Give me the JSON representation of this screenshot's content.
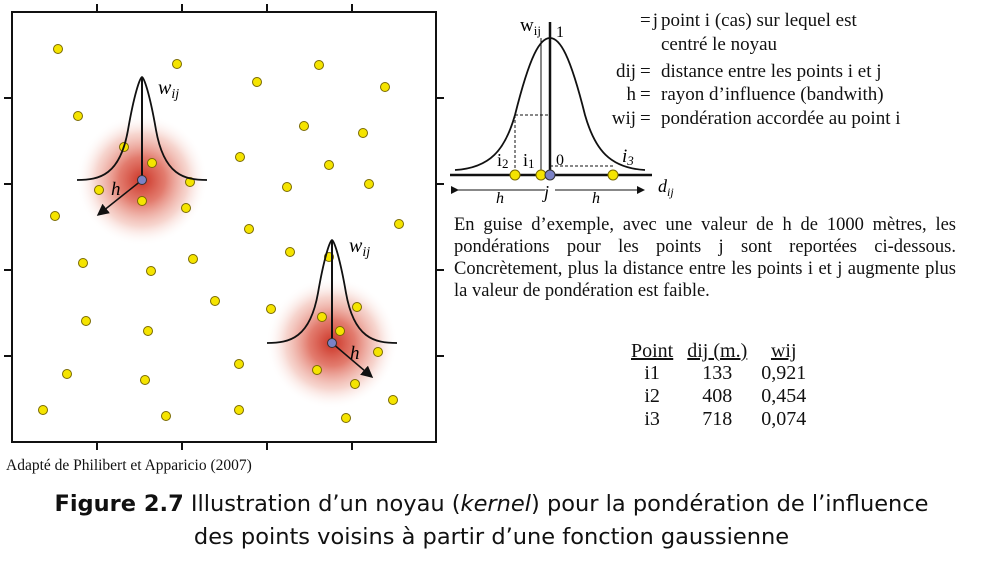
{
  "map": {
    "kernel1_weight_label": "w",
    "kernel1_weight_sub": "ij",
    "kernel1_radius_label": "h",
    "kernel2_weight_label": "w",
    "kernel2_weight_sub": "ij",
    "kernel2_radius_label": "h"
  },
  "curve": {
    "y_label": "w",
    "y_label_sub": "ij",
    "peak_label": "1",
    "origin_label": "0",
    "i1_label": "i",
    "i1_sub": "1",
    "i2_label": "i",
    "i2_sub": "2",
    "i3_label": "i",
    "i3_sub": "3",
    "j_label": "j",
    "h_left": "h",
    "h_right": "h",
    "x_label": "d",
    "x_label_sub": "ij"
  },
  "legend": [
    {
      "symbol": "j",
      "eq": "=",
      "text": "point i (cas) sur lequel est",
      "text2": "centré le noyau"
    },
    {
      "symbol": "dij",
      "eq": "=",
      "text": "distance entre les points i et j"
    },
    {
      "symbol": "h",
      "eq": "=",
      "text": "rayon d’influence (bandwith)"
    },
    {
      "symbol": "wij",
      "eq": "=",
      "text": "pondération accordée au point i"
    }
  ],
  "paragraph": "En guise d’exemple, avec une valeur de h de 1000 mètres, les pondérations pour les points j sont reportées ci-dessous. Concrètement, plus la distance entre les points i et j augmente plus la valeur de pondération est faible.",
  "table": {
    "headers": [
      "Point",
      "dij (m.)",
      "wij"
    ],
    "rows": [
      [
        "i1",
        "133",
        "0,921"
      ],
      [
        "i2",
        "408",
        "0,454"
      ],
      [
        "i3",
        "718",
        "0,074"
      ]
    ]
  },
  "source": "Adapté de Philibert et Apparicio (2007)",
  "caption": {
    "label": "Figure 2.7",
    "text_before": " Illustration d’un noyau (",
    "italic": "kernel",
    "text_after": ") pour la pondération de l’influence",
    "line2": "des points voisins à partir d’une fonction gaussienne"
  },
  "colors": {
    "point_fill": "#f5e400",
    "point_stroke": "#7a6a00",
    "center_fill": "#7b82c6",
    "halo": "#d62c1c"
  }
}
